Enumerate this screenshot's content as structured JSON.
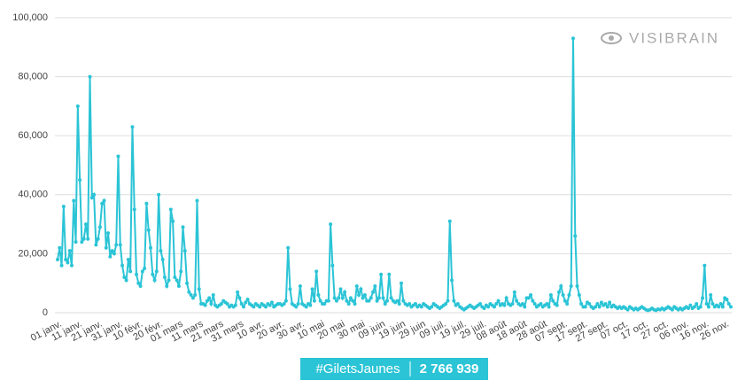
{
  "chart_data": {
    "type": "line",
    "watermark": "VISIBRAIN",
    "hashtag": "#GiletsJaunes",
    "total": "2 766 939",
    "color": "#2bc4d6",
    "grid": true,
    "ylim": [
      0,
      100000
    ],
    "yticks": [
      0,
      {
        "value": 20000,
        "label": "20,000"
      },
      {
        "value": 40000,
        "label": "40,000"
      },
      {
        "value": 60000,
        "label": "60,000"
      },
      {
        "value": 80000,
        "label": "80,000"
      },
      {
        "value": 100000,
        "label": "100,000"
      }
    ],
    "categories": [
      "01 janv.",
      null,
      null,
      null,
      null,
      null,
      null,
      null,
      null,
      null,
      "11 janv.",
      null,
      null,
      null,
      null,
      null,
      null,
      null,
      null,
      null,
      "21 janv.",
      null,
      null,
      null,
      null,
      null,
      null,
      null,
      null,
      null,
      "31 janv.",
      null,
      null,
      null,
      null,
      null,
      null,
      null,
      null,
      null,
      "10 févr.",
      null,
      null,
      null,
      null,
      null,
      null,
      null,
      null,
      null,
      "20 févr.",
      null,
      null,
      null,
      null,
      null,
      null,
      null,
      null,
      null,
      "01 mars",
      null,
      null,
      null,
      null,
      null,
      null,
      null,
      null,
      null,
      "11 mars",
      null,
      null,
      null,
      null,
      null,
      null,
      null,
      null,
      null,
      "21 mars",
      null,
      null,
      null,
      null,
      null,
      null,
      null,
      null,
      null,
      "31 mars",
      null,
      null,
      null,
      null,
      null,
      null,
      null,
      null,
      null,
      "10 avr.",
      null,
      null,
      null,
      null,
      null,
      null,
      null,
      null,
      null,
      "20 avr.",
      null,
      null,
      null,
      null,
      null,
      null,
      null,
      null,
      null,
      "30 avr.",
      null,
      null,
      null,
      null,
      null,
      null,
      null,
      null,
      null,
      "10 mai",
      null,
      null,
      null,
      null,
      null,
      null,
      null,
      null,
      null,
      "20 mai",
      null,
      null,
      null,
      null,
      null,
      null,
      null,
      null,
      null,
      "30 mai",
      null,
      null,
      null,
      null,
      null,
      null,
      null,
      null,
      null,
      "09 juin",
      null,
      null,
      null,
      null,
      null,
      null,
      null,
      null,
      null,
      "19 juin",
      null,
      null,
      null,
      null,
      null,
      null,
      null,
      null,
      null,
      "29 juin",
      null,
      null,
      null,
      null,
      null,
      null,
      null,
      null,
      null,
      "09 juil.",
      null,
      null,
      null,
      null,
      null,
      null,
      null,
      null,
      null,
      "19 juil.",
      null,
      null,
      null,
      null,
      null,
      null,
      null,
      null,
      null,
      "29 juil.",
      null,
      null,
      null,
      null,
      null,
      null,
      null,
      null,
      null,
      "08 août",
      null,
      null,
      null,
      null,
      null,
      null,
      null,
      null,
      null,
      "18 août",
      null,
      null,
      null,
      null,
      null,
      null,
      null,
      null,
      null,
      "28 août",
      null,
      null,
      null,
      null,
      null,
      null,
      null,
      null,
      null,
      "07 sept.",
      null,
      null,
      null,
      null,
      null,
      null,
      null,
      null,
      null,
      "17 sept.",
      null,
      null,
      null,
      null,
      null,
      null,
      null,
      null,
      null,
      "27 sept.",
      null,
      null,
      null,
      null,
      null,
      null,
      null,
      null,
      null,
      "07 oct.",
      null,
      null,
      null,
      null,
      null,
      null,
      null,
      null,
      null,
      "17 oct.",
      null,
      null,
      null,
      null,
      null,
      null,
      null,
      null,
      null,
      "27 oct.",
      null,
      null,
      null,
      null,
      null,
      null,
      null,
      null,
      null,
      "06 nov.",
      null,
      null,
      null,
      null,
      null,
      null,
      null,
      null,
      null,
      "16 nov.",
      null,
      null,
      null,
      null,
      null,
      null,
      null,
      null,
      null,
      "26 nov.",
      null,
      null,
      null
    ],
    "values": [
      18000,
      22000,
      16000,
      36000,
      18000,
      17000,
      21000,
      16000,
      38000,
      24000,
      70000,
      45000,
      24000,
      25000,
      30000,
      25000,
      80000,
      39000,
      40000,
      23000,
      25000,
      29000,
      37000,
      38000,
      22000,
      27000,
      19000,
      21000,
      20000,
      23000,
      53000,
      23000,
      16000,
      12000,
      11000,
      18000,
      14000,
      63000,
      35000,
      13000,
      10000,
      9000,
      14000,
      15000,
      37000,
      28000,
      22000,
      13000,
      11000,
      14000,
      40000,
      21000,
      18000,
      12000,
      9000,
      11000,
      35000,
      31000,
      12000,
      11000,
      9000,
      14000,
      29000,
      21000,
      10000,
      7000,
      6000,
      5000,
      6000,
      38000,
      8000,
      3000,
      3000,
      2500,
      4000,
      5000,
      3000,
      6000,
      2500,
      2000,
      2500,
      3000,
      4000,
      3500,
      3000,
      2000,
      2500,
      2000,
      2500,
      7000,
      5000,
      3000,
      2000,
      3500,
      4500,
      3000,
      2500,
      2000,
      3000,
      2500,
      2000,
      3000,
      2500,
      2000,
      3000,
      2500,
      3500,
      2000,
      2500,
      3000,
      3000,
      2500,
      3000,
      4000,
      22000,
      8000,
      3000,
      2500,
      2000,
      3000,
      9000,
      3000,
      2500,
      2000,
      3000,
      2500,
      8000,
      4000,
      14000,
      6000,
      4000,
      3000,
      3000,
      4000,
      4000,
      30000,
      16000,
      5000,
      4000,
      5000,
      8000,
      5000,
      7000,
      4000,
      3000,
      5000,
      4000,
      3000,
      9000,
      6000,
      8000,
      5000,
      6000,
      4000,
      4000,
      5000,
      7000,
      9000,
      4000,
      5000,
      13000,
      5000,
      3000,
      4000,
      13000,
      5000,
      4000,
      3500,
      4000,
      3000,
      10000,
      4000,
      3000,
      2500,
      3000,
      2000,
      2500,
      3000,
      2000,
      2500,
      2000,
      3000,
      2500,
      2000,
      1500,
      2000,
      3000,
      2500,
      2000,
      1500,
      2000,
      2500,
      3000,
      4000,
      31000,
      11000,
      4000,
      2500,
      3000,
      2000,
      1500,
      1000,
      1500,
      2000,
      2500,
      2000,
      1500,
      2000,
      2500,
      3000,
      2000,
      1500,
      2500,
      2000,
      3000,
      2500,
      2000,
      3000,
      4000,
      2500,
      3000,
      2500,
      5000,
      3000,
      2500,
      3000,
      7000,
      4000,
      3000,
      2500,
      3000,
      2000,
      5000,
      5000,
      6000,
      4000,
      3000,
      2000,
      2500,
      3000,
      2000,
      2500,
      3000,
      2000,
      6000,
      4000,
      3000,
      2500,
      7000,
      9000,
      6000,
      4000,
      3000,
      6000,
      9000,
      93000,
      26000,
      9000,
      6000,
      3000,
      2000,
      2000,
      3500,
      3000,
      2000,
      1500,
      2000,
      3000,
      2000,
      3500,
      2500,
      3000,
      2000,
      3500,
      2000,
      2500,
      2000,
      1500,
      2000,
      1500,
      2000,
      1500,
      1000,
      2000,
      1500,
      1000,
      1500,
      1000,
      1500,
      2000,
      1500,
      1000,
      800,
      1000,
      1500,
      1000,
      800,
      1200,
      1000,
      1500,
      1000,
      1500,
      2000,
      1500,
      1000,
      2000,
      1500,
      1000,
      1500,
      1000,
      1500,
      2000,
      1500,
      2500,
      1500,
      2000,
      3000,
      1500,
      2000,
      5000,
      16000,
      3000,
      2000,
      6000,
      3000,
      2000,
      2500,
      2000,
      3000,
      2000,
      5000,
      4500,
      3000,
      2000
    ]
  }
}
